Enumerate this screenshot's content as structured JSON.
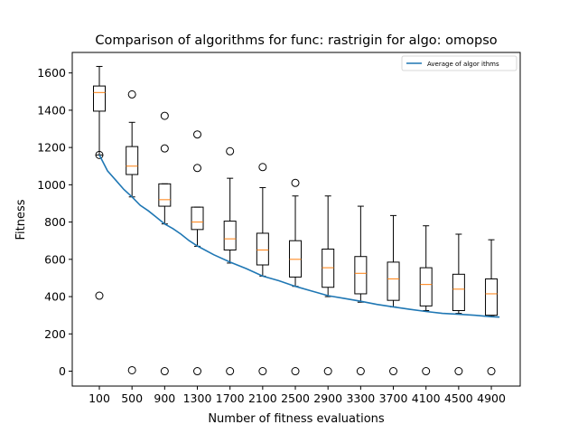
{
  "chart_data": {
    "type": "box",
    "title": "Comparison of algorithms for func: rastrigin for algo: omopso",
    "xlabel": "Number of fitness evaluations",
    "ylabel": "Fitness",
    "categories": [
      "100",
      "500",
      "900",
      "1300",
      "1700",
      "2100",
      "2500",
      "2900",
      "3300",
      "3700",
      "4100",
      "4500",
      "4900"
    ],
    "ylim": [
      -80,
      1710
    ],
    "yticks": [
      0,
      200,
      400,
      600,
      800,
      1000,
      1200,
      1400,
      1600
    ],
    "legend": {
      "placement": "top-right",
      "entries": [
        "Average of algor ithms"
      ]
    },
    "grid": false,
    "boxes": [
      {
        "category": "100",
        "whisker_low": 1160,
        "q1": 1395,
        "median": 1495,
        "q3": 1530,
        "whisker_high": 1635,
        "outliers": [
          1160,
          405
        ]
      },
      {
        "category": "500",
        "whisker_low": 935,
        "q1": 1055,
        "median": 1100,
        "q3": 1205,
        "whisker_high": 1335,
        "outliers": [
          1485,
          5
        ]
      },
      {
        "category": "900",
        "whisker_low": 790,
        "q1": 885,
        "median": 920,
        "q3": 1005,
        "whisker_high": 1005,
        "outliers": [
          1370,
          1195,
          0
        ]
      },
      {
        "category": "1300",
        "whisker_low": 670,
        "q1": 760,
        "median": 800,
        "q3": 880,
        "whisker_high": 880,
        "outliers": [
          1270,
          1090,
          0
        ]
      },
      {
        "category": "1700",
        "whisker_low": 580,
        "q1": 650,
        "median": 710,
        "q3": 805,
        "whisker_high": 1035,
        "outliers": [
          1180,
          0
        ]
      },
      {
        "category": "2100",
        "whisker_low": 510,
        "q1": 570,
        "median": 650,
        "q3": 740,
        "whisker_high": 985,
        "outliers": [
          1095,
          0
        ]
      },
      {
        "category": "2500",
        "whisker_low": 455,
        "q1": 505,
        "median": 600,
        "q3": 700,
        "whisker_high": 940,
        "outliers": [
          1010,
          0
        ]
      },
      {
        "category": "2900",
        "whisker_low": 400,
        "q1": 450,
        "median": 555,
        "q3": 655,
        "whisker_high": 940,
        "outliers": [
          0
        ]
      },
      {
        "category": "3300",
        "whisker_low": 370,
        "q1": 415,
        "median": 525,
        "q3": 615,
        "whisker_high": 885,
        "outliers": [
          0
        ]
      },
      {
        "category": "3700",
        "whisker_low": 345,
        "q1": 380,
        "median": 495,
        "q3": 585,
        "whisker_high": 835,
        "outliers": [
          0
        ]
      },
      {
        "category": "4100",
        "whisker_low": 325,
        "q1": 350,
        "median": 465,
        "q3": 555,
        "whisker_high": 780,
        "outliers": [
          0
        ]
      },
      {
        "category": "4500",
        "whisker_low": 310,
        "q1": 325,
        "median": 440,
        "q3": 520,
        "whisker_high": 735,
        "outliers": [
          0
        ]
      },
      {
        "category": "4900",
        "whisker_low": 295,
        "q1": 300,
        "median": 415,
        "q3": 495,
        "whisker_high": 705,
        "outliers": [
          0
        ]
      }
    ],
    "series": [
      {
        "name": "Average of algor ithms",
        "color": "#1f77b4",
        "x": [
          100,
          200,
          300,
          400,
          500,
          600,
          700,
          800,
          900,
          1000,
          1100,
          1200,
          1300,
          1500,
          1700,
          1900,
          2100,
          2300,
          2500,
          2700,
          2900,
          3100,
          3300,
          3500,
          3700,
          3900,
          4100,
          4300,
          4500,
          4700,
          4900,
          5000
        ],
        "y": [
          1160,
          1075,
          1025,
          975,
          935,
          890,
          860,
          825,
          790,
          765,
          735,
          700,
          672,
          625,
          585,
          550,
          510,
          485,
          455,
          430,
          405,
          390,
          375,
          358,
          345,
          332,
          320,
          310,
          305,
          300,
          292,
          290
        ]
      }
    ],
    "colors": {
      "median": "#ff7f0e",
      "box": "#000000",
      "mean_line": "#1f77b4"
    }
  }
}
